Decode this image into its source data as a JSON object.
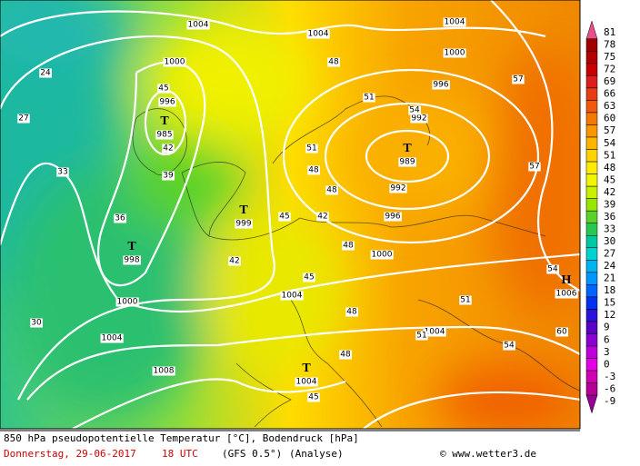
{
  "map": {
    "footer": {
      "title": "850 hPa pseudopotentielle Temperatur [°C], Bodendruck [hPa]",
      "date": "Donnerstag, 29-06-2017",
      "time": "18 UTC",
      "model": "(GFS 0.5°)",
      "run": "(Analyse)",
      "credit": "© www.wetter3.de"
    },
    "pressure_systems": [
      {
        "symbol": "T",
        "value": 985
      },
      {
        "symbol": "T",
        "value": 989
      },
      {
        "symbol": "T",
        "value": 999
      },
      {
        "symbol": "T",
        "value": 998
      },
      {
        "symbol": "T",
        "value": 1004
      },
      {
        "symbol": "H",
        "value": 1006
      }
    ],
    "isobar_labels": [
      1004,
      1000,
      996,
      1004,
      1004,
      1000,
      996,
      992,
      992,
      996,
      1000,
      1000,
      1004,
      1008,
      1004,
      1004
    ],
    "temperature_labels": [
      45,
      42,
      39,
      36,
      33,
      30,
      48,
      51,
      54,
      51,
      48,
      48,
      45,
      42,
      48,
      42,
      45,
      48,
      51,
      54,
      57,
      60,
      45,
      48,
      51,
      54,
      57,
      27,
      24
    ],
    "colorbar": {
      "ticks": [
        81,
        78,
        75,
        72,
        69,
        66,
        63,
        60,
        57,
        54,
        51,
        48,
        45,
        42,
        39,
        36,
        33,
        30,
        27,
        24,
        21,
        18,
        15,
        12,
        9,
        6,
        3,
        0,
        -3,
        -6,
        -9
      ],
      "colors": [
        "#e8508c",
        "#a00000",
        "#b40000",
        "#c80000",
        "#dc1e1e",
        "#e83c14",
        "#f05a0a",
        "#f57800",
        "#fa9600",
        "#ffb400",
        "#ffd200",
        "#ffeb00",
        "#f0f500",
        "#c8f000",
        "#96e600",
        "#5ad228",
        "#28c850",
        "#00c8a0",
        "#00d2d2",
        "#00b4f0",
        "#0096ff",
        "#0064ff",
        "#0032f0",
        "#2814dc",
        "#5a00c8",
        "#8c00d2",
        "#be00dc",
        "#e600e6",
        "#d200b4",
        "#b40096",
        "#960096"
      ]
    }
  }
}
